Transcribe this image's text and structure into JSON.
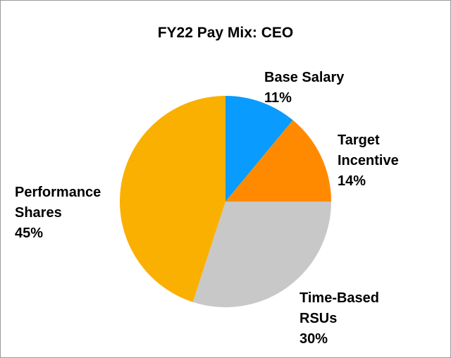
{
  "chart_data": {
    "type": "pie",
    "title": "FY22 Pay Mix: CEO",
    "slices": [
      {
        "label_lines": [
          "Base Salary"
        ],
        "value": 11,
        "value_label": "11%",
        "color": "#0A9BFF"
      },
      {
        "label_lines": [
          "Target",
          "Incentive"
        ],
        "value": 14,
        "value_label": "14%",
        "color": "#FF8A00"
      },
      {
        "label_lines": [
          "Time-Based",
          "RSUs"
        ],
        "value": 30,
        "value_label": "30%",
        "color": "#C8C8C8"
      },
      {
        "label_lines": [
          "Performance",
          "Shares"
        ],
        "value": 45,
        "value_label": "45%",
        "color": "#FAB000"
      }
    ],
    "start_angle": "12 o'clock",
    "direction": "clockwise",
    "legend": "none"
  }
}
